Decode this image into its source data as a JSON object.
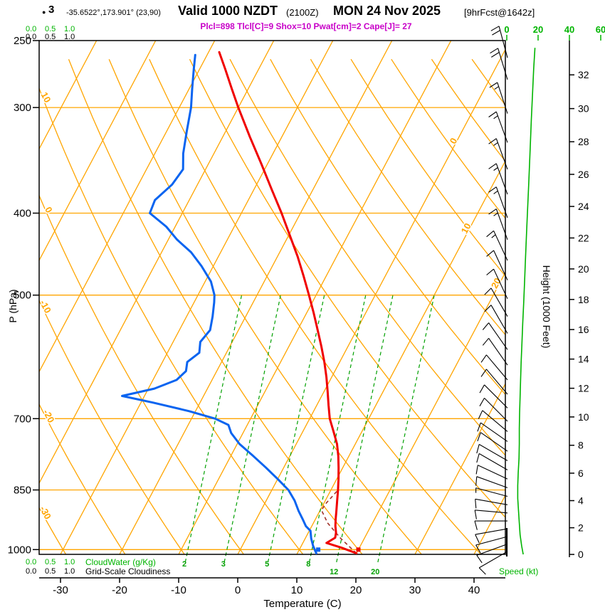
{
  "header": {
    "marker": "●",
    "station": "3",
    "coords": "-35.6522°,173.901° (23,90)",
    "valid_time": "Valid 1000 NZDT",
    "valid_zulu": "(2100Z)",
    "valid_date": "MON 24 Nov 2025",
    "forecast": "[9hrFcst@1642z]",
    "indices": "Plcl=898 Tlcl[C]=9 Shox=10 Pwat[cm]=2 Cape[J]= 27"
  },
  "axes": {
    "pressure_label": "P (hPa)",
    "pressure_ticks": [
      250,
      300,
      400,
      500,
      700,
      850,
      1000
    ],
    "temp_label": "Temperature (C)",
    "temp_ticks": [
      -30,
      -20,
      -10,
      0,
      10,
      20,
      30,
      40
    ],
    "height_label": "Height (1000 Feet)",
    "height_ticks": [
      0,
      2,
      4,
      6,
      8,
      10,
      12,
      14,
      16,
      18,
      20,
      22,
      24,
      26,
      28,
      30,
      32
    ],
    "speed_label": "Speed (kt)",
    "speed_ticks": [
      0,
      20,
      40,
      60
    ],
    "cloudwater_label": "CloudWater (g/Kg)",
    "cloudiness_label": "Grid-Scale Cloudiness",
    "cloud_scale": [
      "0.0",
      "0.5",
      "1.0"
    ]
  },
  "chart_data": {
    "type": "skewt-log-p-sounding",
    "pressure_range_hpa": [
      1013,
      250
    ],
    "temp_axis_c": [
      -35,
      45
    ],
    "colors": {
      "grid": "#FFA500",
      "mixing": "#00A000",
      "green": "#00B400",
      "temp": "#F00000",
      "dew": "#0A64F0",
      "parcel": "#A03028"
    },
    "grid": {
      "pressure_lines": [
        300,
        400,
        500,
        700,
        850,
        1000
      ],
      "isotherms": {
        "min": -100,
        "max": 40,
        "step": 10
      },
      "dry_adiabats": {
        "min": -40,
        "max": 140,
        "step": 10
      },
      "mixing_ratio": {
        "values": [
          2,
          3,
          5,
          8,
          12,
          20
        ],
        "td_at_1000": [
          -8.6,
          -2,
          5.4,
          12.4,
          17,
          24
        ]
      },
      "isotherm_labels": [
        0,
        10,
        20
      ],
      "adiabat_labels": [
        10,
        0,
        -10,
        -20,
        -30
      ]
    },
    "surface": {
      "pressure": 1000,
      "temp_c": 20,
      "dewpoint_c": 13.2
    },
    "temperature_c": [
      [
        1010,
        20
      ],
      [
        995,
        17
      ],
      [
        982,
        14
      ],
      [
        968,
        15
      ],
      [
        955,
        14.7
      ],
      [
        938,
        14
      ],
      [
        920,
        13.4
      ],
      [
        900,
        12.8
      ],
      [
        875,
        12
      ],
      [
        850,
        11.2
      ],
      [
        825,
        10.3
      ],
      [
        800,
        9.3
      ],
      [
        775,
        8.2
      ],
      [
        750,
        6.9
      ],
      [
        725,
        5.2
      ],
      [
        700,
        3.4
      ],
      [
        675,
        2
      ],
      [
        650,
        0.6
      ],
      [
        625,
        -0.9
      ],
      [
        600,
        -2.6
      ],
      [
        575,
        -4.5
      ],
      [
        550,
        -6.6
      ],
      [
        525,
        -8.8
      ],
      [
        500,
        -11.2
      ],
      [
        475,
        -13.8
      ],
      [
        450,
        -16.6
      ],
      [
        425,
        -19.8
      ],
      [
        400,
        -23.2
      ],
      [
        375,
        -27
      ],
      [
        350,
        -31
      ],
      [
        325,
        -35.4
      ],
      [
        300,
        -40
      ],
      [
        285,
        -42.8
      ],
      [
        270,
        -45.7
      ],
      [
        258,
        -48.2
      ]
    ],
    "dewpoint_c": [
      [
        1010,
        13.2
      ],
      [
        990,
        12
      ],
      [
        970,
        11
      ],
      [
        950,
        10.2
      ],
      [
        938,
        9
      ],
      [
        920,
        7.8
      ],
      [
        900,
        6.4
      ],
      [
        875,
        4.8
      ],
      [
        850,
        2.8
      ],
      [
        825,
        0
      ],
      [
        800,
        -3
      ],
      [
        775,
        -6.2
      ],
      [
        750,
        -9.6
      ],
      [
        728,
        -12
      ],
      [
        712,
        -13.2
      ],
      [
        700,
        -16
      ],
      [
        686,
        -21
      ],
      [
        670,
        -28
      ],
      [
        658,
        -33.8
      ],
      [
        645,
        -29
      ],
      [
        630,
        -26
      ],
      [
        615,
        -25.2
      ],
      [
        600,
        -25.8
      ],
      [
        585,
        -24.6
      ],
      [
        568,
        -25.4
      ],
      [
        550,
        -24.8
      ],
      [
        530,
        -25.6
      ],
      [
        510,
        -26.6
      ],
      [
        500,
        -27.2
      ],
      [
        482,
        -29
      ],
      [
        462,
        -32
      ],
      [
        445,
        -35
      ],
      [
        430,
        -38.5
      ],
      [
        415,
        -41.5
      ],
      [
        400,
        -45.5
      ],
      [
        386,
        -45.8
      ],
      [
        370,
        -44.3
      ],
      [
        355,
        -43.8
      ],
      [
        340,
        -45.2
      ],
      [
        320,
        -46.6
      ],
      [
        300,
        -48
      ],
      [
        285,
        -49.5
      ],
      [
        270,
        -51
      ],
      [
        260,
        -52
      ]
    ],
    "parcel_c": [
      [
        1010,
        20
      ],
      [
        970,
        16
      ],
      [
        930,
        12.4
      ],
      [
        898,
        10.2
      ],
      [
        880,
        10.4
      ],
      [
        862,
        10.9
      ],
      [
        850,
        11.2
      ]
    ],
    "speed_profile": [
      [
        1013,
        10.5
      ],
      [
        990,
        9.5
      ],
      [
        960,
        8.5
      ],
      [
        930,
        8
      ],
      [
        900,
        7.5
      ],
      [
        870,
        7
      ],
      [
        840,
        7
      ],
      [
        810,
        7.3
      ],
      [
        780,
        7.8
      ],
      [
        750,
        8
      ],
      [
        720,
        8
      ],
      [
        690,
        8.2
      ],
      [
        660,
        8.5
      ],
      [
        630,
        8.8
      ],
      [
        600,
        9.2
      ],
      [
        570,
        9.7
      ],
      [
        540,
        10.2
      ],
      [
        510,
        10.8
      ],
      [
        480,
        11.4
      ],
      [
        450,
        12
      ],
      [
        420,
        12.7
      ],
      [
        400,
        13.2
      ],
      [
        370,
        14
      ],
      [
        340,
        14.8
      ],
      [
        310,
        15.7
      ],
      [
        290,
        16.4
      ],
      [
        270,
        17.2
      ],
      [
        255,
        18
      ]
    ],
    "wind": [
      [
        1005,
        240,
        10
      ],
      [
        985,
        250,
        10
      ],
      [
        965,
        255,
        10
      ],
      [
        945,
        260,
        10
      ],
      [
        925,
        270,
        10
      ],
      [
        905,
        275,
        10
      ],
      [
        885,
        280,
        10
      ],
      [
        865,
        285,
        5
      ],
      [
        845,
        290,
        10
      ],
      [
        825,
        295,
        10
      ],
      [
        805,
        300,
        10
      ],
      [
        785,
        300,
        10
      ],
      [
        765,
        305,
        10
      ],
      [
        745,
        305,
        10
      ],
      [
        725,
        310,
        10
      ],
      [
        705,
        315,
        10
      ],
      [
        680,
        315,
        10
      ],
      [
        655,
        320,
        10
      ],
      [
        630,
        320,
        10
      ],
      [
        605,
        325,
        10
      ],
      [
        580,
        325,
        10
      ],
      [
        555,
        330,
        10
      ],
      [
        530,
        330,
        10
      ],
      [
        505,
        335,
        10
      ],
      [
        480,
        335,
        10
      ],
      [
        455,
        335,
        15
      ],
      [
        430,
        340,
        15
      ],
      [
        405,
        340,
        15
      ],
      [
        380,
        340,
        15
      ],
      [
        355,
        340,
        15
      ],
      [
        330,
        340,
        15
      ],
      [
        305,
        342,
        15
      ],
      [
        278,
        343,
        20
      ],
      [
        262,
        345,
        20
      ]
    ]
  }
}
